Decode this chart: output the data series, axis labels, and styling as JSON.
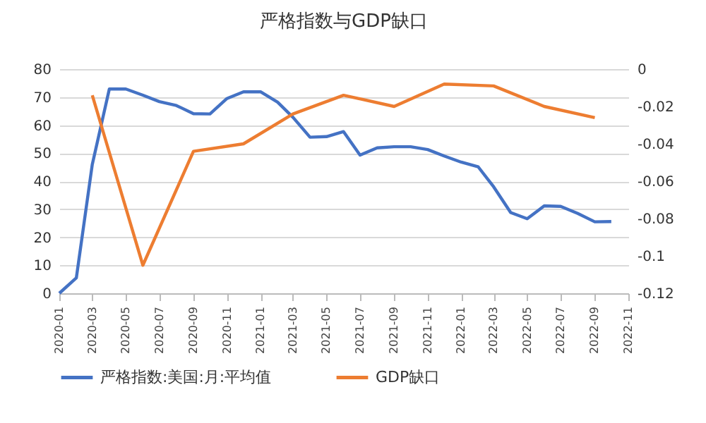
{
  "chart_data": {
    "type": "line",
    "title": "严格指数与GDP缺口",
    "x": [
      "2020-01",
      "2020-02",
      "2020-03",
      "2020-04",
      "2020-05",
      "2020-06",
      "2020-07",
      "2020-08",
      "2020-09",
      "2020-10",
      "2020-11",
      "2020-12",
      "2021-01",
      "2021-02",
      "2021-03",
      "2021-04",
      "2021-05",
      "2021-06",
      "2021-07",
      "2021-08",
      "2021-09",
      "2021-10",
      "2021-11",
      "2021-12",
      "2022-01",
      "2022-02",
      "2022-03",
      "2022-04",
      "2022-05",
      "2022-06",
      "2022-07",
      "2022-08",
      "2022-09",
      "2022-10"
    ],
    "series": [
      {
        "name": "严格指数:美国:月:平均值",
        "color": "#4472c4",
        "values": [
          0,
          5.5,
          46,
          72.9,
          72.9,
          70.7,
          68.4,
          67,
          64.1,
          64,
          69.5,
          71.9,
          71.9,
          68.2,
          62.8,
          55.7,
          55.9,
          57.7,
          49.3,
          51.9,
          52.3,
          52.3,
          51.3,
          49,
          46.8,
          45.1,
          38,
          28.8,
          26.6,
          31.2,
          31,
          28.5,
          25.5,
          25.6
        ]
      },
      {
        "name": "GDP缺口",
        "color": "#ed7d31",
        "axis": "y2",
        "x": [
          "2020-03",
          "2020-06",
          "2020-09",
          "2020-12",
          "2021-03",
          "2021-06",
          "2021-09",
          "2021-12",
          "2022-03",
          "2022-06",
          "2022-09"
        ],
        "values": [
          -0.014,
          -0.105,
          -0.044,
          -0.04,
          -0.024,
          -0.014,
          -0.02,
          -0.008,
          -0.009,
          -0.02,
          -0.026
        ]
      }
    ],
    "xlim": [
      "2020-01",
      "2022-11"
    ],
    "xticks": [
      "2020-01",
      "2020-03",
      "2020-05",
      "2020-07",
      "2020-09",
      "2020-11",
      "2021-01",
      "2021-03",
      "2021-05",
      "2021-07",
      "2021-09",
      "2021-11",
      "2022-01",
      "2022-03",
      "2022-05",
      "2022-07",
      "2022-09",
      "2022-11"
    ],
    "ylim": [
      0,
      80
    ],
    "yticks": [
      0,
      10,
      20,
      30,
      40,
      50,
      60,
      70,
      80
    ],
    "y2lim": [
      -0.12,
      0
    ],
    "y2ticks": [
      {
        "value": -0.12,
        "label": "-0.12"
      },
      {
        "value": -0.1,
        "label": "-0.1"
      },
      {
        "value": -0.08,
        "label": "-0.08"
      },
      {
        "value": -0.06,
        "label": "-0.06"
      },
      {
        "value": -0.04,
        "label": "-0.04"
      },
      {
        "value": -0.02,
        "label": "-0.02"
      },
      {
        "value": 0,
        "label": "0"
      }
    ],
    "grid": "y",
    "legend": "bottom",
    "line_style": "solid",
    "marker": "none"
  }
}
